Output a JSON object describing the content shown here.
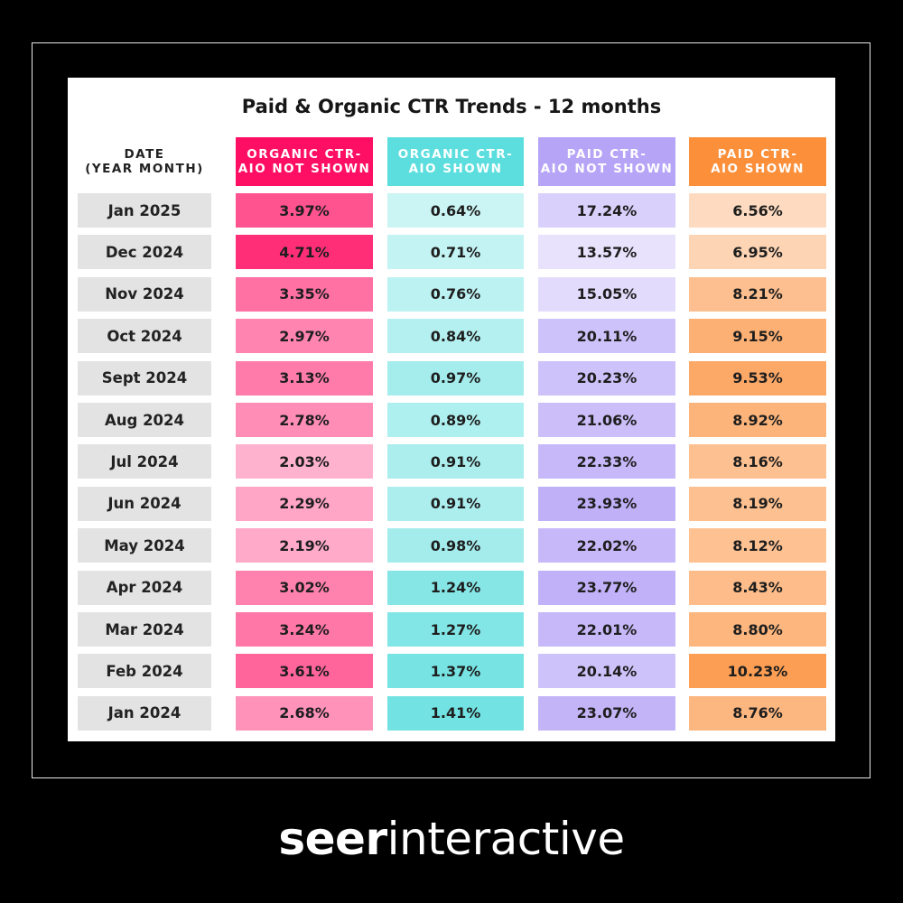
{
  "chart_data": {
    "type": "table",
    "title": "Paid & Organic CTR Trends - 12 months",
    "columns": [
      {
        "label": "DATE\n(YEAR MONTH)"
      },
      {
        "label": "ORGANIC CTR-\nAIO NOT SHOWN",
        "color": "#ff0f63"
      },
      {
        "label": "ORGANIC CTR-\nAIO SHOWN",
        "color": "#5ddede"
      },
      {
        "label": "PAID CTR-\nAIO NOT SHOWN",
        "color": "#b6a4f7"
      },
      {
        "label": "PAID CTR-\nAIO SHOWN",
        "color": "#fb8f3a"
      }
    ],
    "rows": [
      {
        "date": "Jan 2025",
        "values": [
          "3.97%",
          "0.64%",
          "17.24%",
          "6.56%"
        ]
      },
      {
        "date": "Dec 2024",
        "values": [
          "4.71%",
          "0.71%",
          "13.57%",
          "6.95%"
        ]
      },
      {
        "date": "Nov 2024",
        "values": [
          "3.35%",
          "0.76%",
          "15.05%",
          "8.21%"
        ]
      },
      {
        "date": "Oct 2024",
        "values": [
          "2.97%",
          "0.84%",
          "20.11%",
          "9.15%"
        ]
      },
      {
        "date": "Sept 2024",
        "values": [
          "3.13%",
          "0.97%",
          "20.23%",
          "9.53%"
        ]
      },
      {
        "date": "Aug 2024",
        "values": [
          "2.78%",
          "0.89%",
          "21.06%",
          "8.92%"
        ]
      },
      {
        "date": "Jul 2024",
        "values": [
          "2.03%",
          "0.91%",
          "22.33%",
          "8.16%"
        ]
      },
      {
        "date": "Jun 2024",
        "values": [
          "2.29%",
          "0.91%",
          "23.93%",
          "8.19%"
        ]
      },
      {
        "date": "May 2024",
        "values": [
          "2.19%",
          "0.98%",
          "22.02%",
          "8.12%"
        ]
      },
      {
        "date": "Apr 2024",
        "values": [
          "3.02%",
          "1.24%",
          "23.77%",
          "8.43%"
        ]
      },
      {
        "date": "Mar 2024",
        "values": [
          "3.24%",
          "1.27%",
          "22.01%",
          "8.80%"
        ]
      },
      {
        "date": "Feb 2024",
        "values": [
          "3.61%",
          "1.37%",
          "20.14%",
          "10.23%"
        ]
      },
      {
        "date": "Jan 2024",
        "values": [
          "2.68%",
          "1.41%",
          "23.07%",
          "8.76%"
        ]
      }
    ]
  },
  "brand": {
    "bold": "seer",
    "regular": "interactive"
  }
}
